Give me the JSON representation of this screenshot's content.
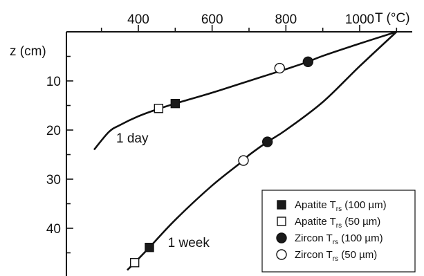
{
  "chart_data": {
    "type": "line",
    "x_axis": {
      "label": "T (°C)",
      "ticks": [
        400,
        600,
        800,
        1000
      ],
      "range": [
        280,
        1150
      ],
      "position": "top"
    },
    "y_axis": {
      "label": "z (cm)",
      "ticks": [
        10,
        20,
        30,
        40
      ],
      "range": [
        0,
        48
      ],
      "inverted": true
    },
    "series": [
      {
        "name": "1 day",
        "points": [
          {
            "T": 1100,
            "z": 0
          },
          {
            "T": 1000,
            "z": 2.4
          },
          {
            "T": 900,
            "z": 4.9
          },
          {
            "T": 860,
            "z": 6.1
          },
          {
            "T": 800,
            "z": 7.6
          },
          {
            "T": 700,
            "z": 10.0
          },
          {
            "T": 600,
            "z": 12.4
          },
          {
            "T": 500,
            "z": 14.6
          },
          {
            "T": 450,
            "z": 15.8
          },
          {
            "T": 400,
            "z": 17.2
          },
          {
            "T": 350,
            "z": 19.0
          },
          {
            "T": 320,
            "z": 20.4
          },
          {
            "T": 280,
            "z": 24.0
          }
        ]
      },
      {
        "name": "1 week",
        "points": [
          {
            "T": 1100,
            "z": 0
          },
          {
            "T": 1000,
            "z": 7.0
          },
          {
            "T": 900,
            "z": 14.3
          },
          {
            "T": 800,
            "z": 20.0
          },
          {
            "T": 750,
            "z": 22.4
          },
          {
            "T": 700,
            "z": 25.1
          },
          {
            "T": 685,
            "z": 26.2
          },
          {
            "T": 600,
            "z": 31.3
          },
          {
            "T": 500,
            "z": 38.3
          },
          {
            "T": 430,
            "z": 43.9
          },
          {
            "T": 390,
            "z": 47.0
          },
          {
            "T": 370,
            "z": 48.5
          }
        ]
      }
    ],
    "markers": [
      {
        "series": "1 day",
        "kind": "Apatite (100 µm)",
        "T": 500,
        "z": 14.6
      },
      {
        "series": "1 day",
        "kind": "Apatite (50 µm)",
        "T": 455,
        "z": 15.6
      },
      {
        "series": "1 day",
        "kind": "Zircon (100 µm)",
        "T": 860,
        "z": 6.1
      },
      {
        "series": "1 day",
        "kind": "Zircon (50 µm)",
        "T": 783,
        "z": 7.4
      },
      {
        "series": "1 week",
        "kind": "Apatite (100 µm)",
        "T": 430,
        "z": 43.9
      },
      {
        "series": "1 week",
        "kind": "Apatite (50 µm)",
        "T": 390,
        "z": 47.0
      },
      {
        "series": "1 week",
        "kind": "Zircon (100 µm)",
        "T": 750,
        "z": 22.4
      },
      {
        "series": "1 week",
        "kind": "Zircon (50 µm)",
        "T": 685,
        "z": 26.2
      }
    ],
    "annotations": [
      {
        "text": "1 day",
        "T": 340,
        "z": 22.5
      },
      {
        "text": "1 week",
        "T": 480,
        "z": 43.8
      }
    ],
    "legend": {
      "placement": "bottom-right",
      "entries": [
        {
          "symbol": "filled-square",
          "mineral": "Apatite T",
          "sub": "rs",
          "size": " (100 µm)"
        },
        {
          "symbol": "open-square",
          "mineral": "Apatite T",
          "sub": "rs",
          "size": " (50 µm)"
        },
        {
          "symbol": "filled-circle",
          "mineral": "Zircon T",
          "sub": "rs",
          "size": " (100 µm)"
        },
        {
          "symbol": "open-circle",
          "mineral": "Zircon T",
          "sub": "rs",
          "size": " (50 µm)"
        }
      ]
    },
    "colors": {
      "line": "#111111",
      "fill": "#1a1a1a",
      "open": "#ffffff"
    }
  }
}
